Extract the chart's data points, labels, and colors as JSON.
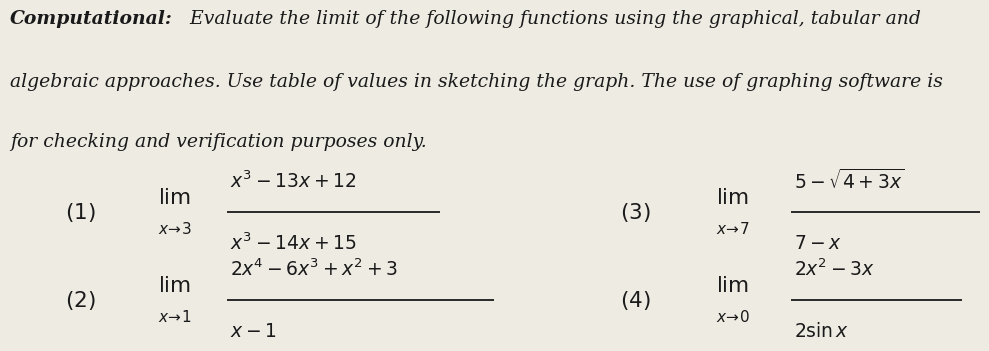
{
  "background_color": "#eeebe3",
  "text_color": "#1a1a1a",
  "header_fs": 13.5,
  "math_fs": 15.5,
  "sub_fs": 11.0,
  "num_fs": 13.5
}
